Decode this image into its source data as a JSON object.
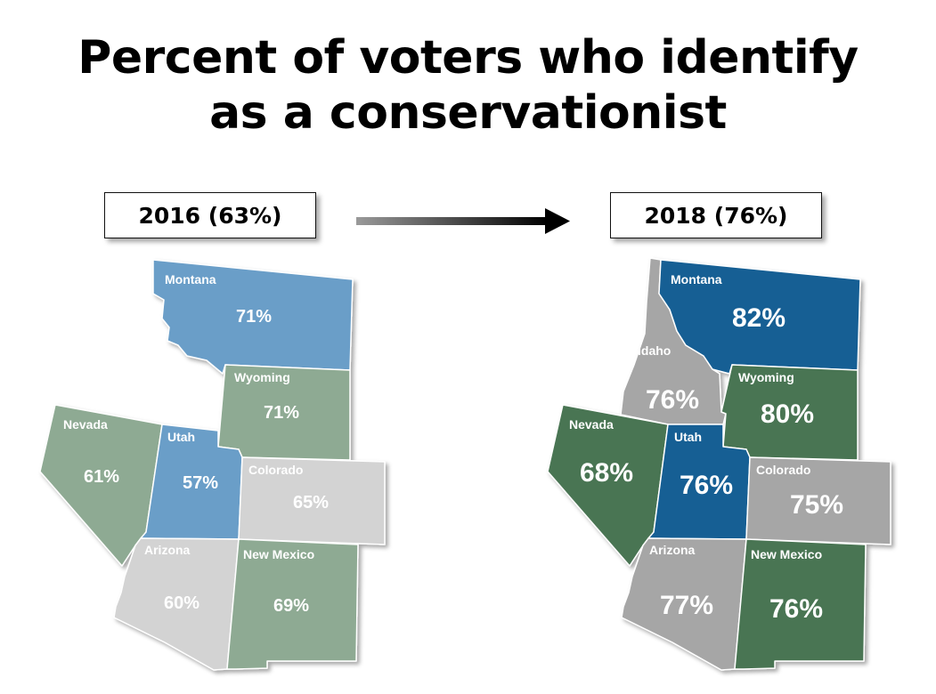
{
  "title": {
    "line1": "Percent of voters who identify",
    "line2": "as a conservationist"
  },
  "arrow_icon": "right-arrow-icon",
  "colors": {
    "blue_2016": "#6a9ec8",
    "green_2016": "#8eaa93",
    "gray_2016": "#d3d3d3",
    "blue_2018": "#135f94",
    "green_2018": "#4a7453",
    "gray_2018": "#a6a6a6"
  },
  "map_2016": {
    "label": "2016 (63%)",
    "states": {
      "montana": {
        "name": "Montana",
        "pct": "71%"
      },
      "wyoming": {
        "name": "Wyoming",
        "pct": "71%"
      },
      "nevada": {
        "name": "Nevada",
        "pct": "61%"
      },
      "utah": {
        "name": "Utah",
        "pct": "57%"
      },
      "colorado": {
        "name": "Colorado",
        "pct": "65%"
      },
      "arizona": {
        "name": "Arizona",
        "pct": "60%"
      },
      "new_mexico": {
        "name": "New Mexico",
        "pct": "69%"
      }
    }
  },
  "map_2018": {
    "label": "2018 (76%)",
    "states": {
      "montana": {
        "name": "Montana",
        "pct": "82%"
      },
      "idaho": {
        "name": "Idaho",
        "pct": "76%"
      },
      "wyoming": {
        "name": "Wyoming",
        "pct": "80%"
      },
      "nevada": {
        "name": "Nevada",
        "pct": "68%"
      },
      "utah": {
        "name": "Utah",
        "pct": "76%"
      },
      "colorado": {
        "name": "Colorado",
        "pct": "75%"
      },
      "arizona": {
        "name": "Arizona",
        "pct": "77%"
      },
      "new_mexico": {
        "name": "New Mexico",
        "pct": "76%"
      }
    }
  }
}
